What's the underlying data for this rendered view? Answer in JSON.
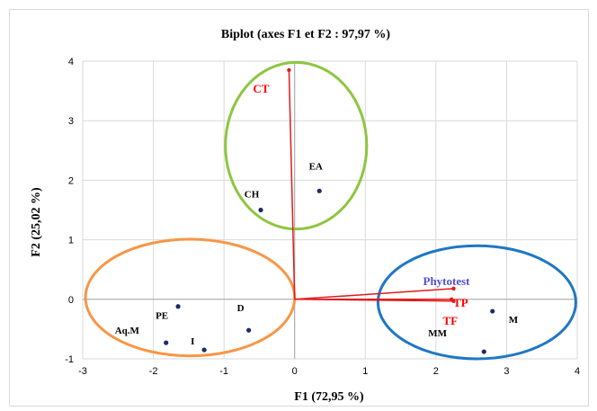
{
  "chart_data": {
    "type": "scatter",
    "title": "Biplot (axes F1 et F2 : 97,97 %)",
    "xlabel": "F1 (72,95 %)",
    "ylabel": "F2 (25,02 %)",
    "xlim": [
      -3,
      4
    ],
    "ylim": [
      -1,
      4
    ],
    "xticks": [
      "-3",
      "-2",
      "-1",
      "0",
      "1",
      "2",
      "3",
      "4"
    ],
    "yticks": [
      "-1",
      "0",
      "1",
      "2",
      "3",
      "4"
    ],
    "grid": true,
    "observations": [
      {
        "label": "EA",
        "x": 0.35,
        "y": 1.82
      },
      {
        "label": "CH",
        "x": -0.48,
        "y": 1.5
      },
      {
        "label": "PE",
        "x": -1.65,
        "y": -0.12
      },
      {
        "label": "Aq.M",
        "x": -1.82,
        "y": -0.73
      },
      {
        "label": "I",
        "x": -1.28,
        "y": -0.85
      },
      {
        "label": "D",
        "x": -0.65,
        "y": -0.52
      },
      {
        "label": "M",
        "x": 2.8,
        "y": -0.2
      },
      {
        "label": "MM",
        "x": 2.68,
        "y": -0.88
      }
    ],
    "variables": [
      {
        "label": "CT",
        "x": -0.08,
        "y": 3.85,
        "color": "#ff0000"
      },
      {
        "label": "Phytotest",
        "x": 2.25,
        "y": 0.18,
        "color": "#4f4fd9"
      },
      {
        "label": "TP",
        "x": 2.22,
        "y": 0.0,
        "color": "#ff0000"
      },
      {
        "label": "TF",
        "x": 2.25,
        "y": -0.03,
        "color": "#ff0000"
      }
    ],
    "groups": [
      {
        "cx": 0.02,
        "cy": 2.58,
        "rx": 1.0,
        "ry": 1.4,
        "color": "#8dc63f"
      },
      {
        "cx": -1.48,
        "cy": 0.03,
        "rx": 1.48,
        "ry": 0.98,
        "color": "#f79646"
      },
      {
        "cx": 2.58,
        "cy": -0.05,
        "rx": 1.4,
        "ry": 0.95,
        "color": "#1f77c4"
      }
    ],
    "colors": {
      "observation": "#1f2a6b",
      "vector": "#e31a1c",
      "grid": "#d9d9d9"
    }
  }
}
